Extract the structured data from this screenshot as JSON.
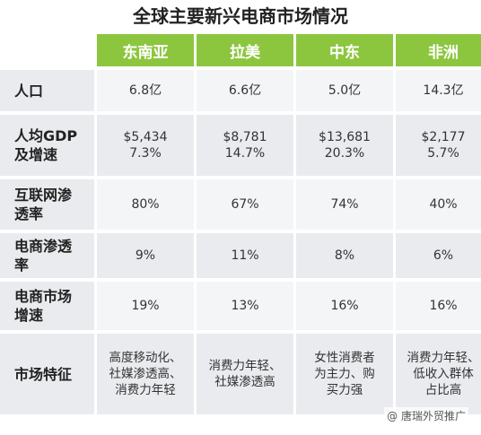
{
  "title": "全球主要新兴电商市场情况",
  "watermark": "@ 唐瑞外贸推广",
  "colors": {
    "header_green": "#8cc63f",
    "row_light": "#f4f5f7",
    "row_dark": "#e9ebee"
  },
  "chart_data": {
    "type": "table",
    "title": "全球主要新兴电商市场情况",
    "columns": [
      "东南亚",
      "拉美",
      "中东",
      "非洲"
    ],
    "rows": [
      {
        "label": "人口",
        "cells": [
          [
            "6.8亿"
          ],
          [
            "6.6亿"
          ],
          [
            "5.0亿"
          ],
          [
            "14.3亿"
          ]
        ]
      },
      {
        "label": "人均GDP及增速",
        "cells": [
          [
            "$5,434",
            "7.3%"
          ],
          [
            "$8,781",
            "14.7%"
          ],
          [
            "$13,681",
            "20.3%"
          ],
          [
            "$2,177",
            "5.7%"
          ]
        ]
      },
      {
        "label": "互联网渗透率",
        "cells": [
          [
            "80%"
          ],
          [
            "67%"
          ],
          [
            "74%"
          ],
          [
            "40%"
          ]
        ]
      },
      {
        "label": "电商渗透率",
        "cells": [
          [
            "9%"
          ],
          [
            "11%"
          ],
          [
            "8%"
          ],
          [
            "6%"
          ]
        ]
      },
      {
        "label": "电商市场增速",
        "cells": [
          [
            "19%"
          ],
          [
            "13%"
          ],
          [
            "16%"
          ],
          [
            "16%"
          ]
        ]
      },
      {
        "label": "市场特征",
        "cells": [
          [
            "高度移动化、",
            "社媒渗透高、",
            "消费力年轻"
          ],
          [
            "消费力年轻、",
            "社媒渗透高"
          ],
          [
            "女性消费者",
            "为主力、购",
            "买力强"
          ],
          [
            "消费力年轻、",
            "低收入群体",
            "占比高"
          ]
        ]
      }
    ]
  },
  "row_labels_display": [
    [
      "人口"
    ],
    [
      "人均GDP",
      "及增速"
    ],
    [
      "互联网渗",
      "透率"
    ],
    [
      "电商渗透",
      "率"
    ],
    [
      "电商市场",
      "增速"
    ],
    [
      "市场特征"
    ]
  ]
}
